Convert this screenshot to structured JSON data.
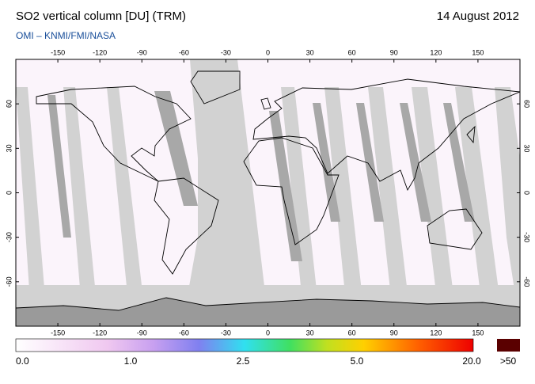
{
  "header": {
    "title": "SO2 vertical column [DU] (TRM)",
    "date": "14 August 2012",
    "subtitle": "OMI  –  KNMI/FMI/NASA"
  },
  "map": {
    "lon_ticks": [
      -150,
      -120,
      -90,
      -60,
      -30,
      0,
      30,
      60,
      90,
      120,
      150
    ],
    "lat_ticks": [
      60,
      30,
      0,
      -30,
      -60
    ]
  },
  "colorbar": {
    "labels": [
      "0.0",
      "1.0",
      "2.5",
      "5.0",
      "20.0",
      ">50"
    ]
  }
}
